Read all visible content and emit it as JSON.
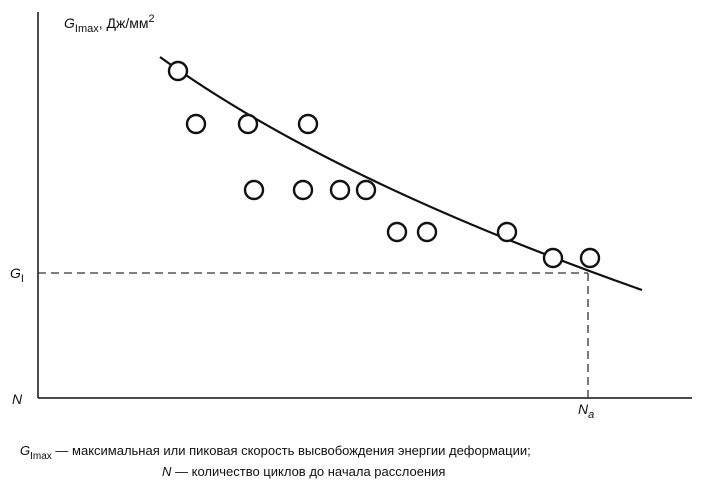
{
  "y_axis_label": {
    "symbol": "G",
    "subscript": "Imax",
    "unit": ", Дж/мм",
    "superscript": "2"
  },
  "threshold_label": {
    "symbol": "G",
    "subscript": "I"
  },
  "origin_label": "N",
  "onset_label": {
    "symbol": "N",
    "subscript": "a"
  },
  "legend": [
    {
      "symbol": "G",
      "subscript": "Imax",
      "text": " — максимальная или пиковая скорость высвобождения энергии деформации;"
    },
    {
      "symbol": "N",
      "text": " — количество циклов до начала расслоения"
    }
  ]
}
